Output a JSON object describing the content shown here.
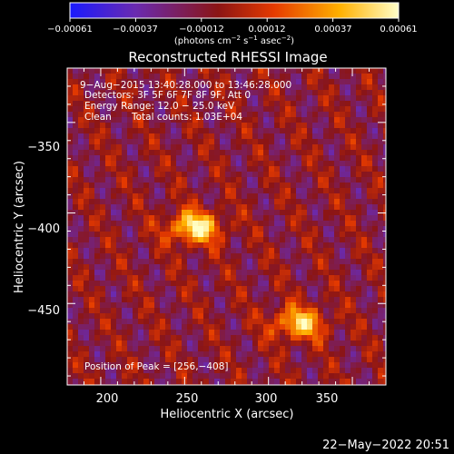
{
  "chart_data": {
    "type": "heatmap",
    "title": "Reconstructed RHESSI Image",
    "xlabel": "Heliocentric X (arcsec)",
    "ylabel": "Heliocentric Y (arcsec)",
    "xlim": [
      180,
      370
    ],
    "ylim": [
      -495,
      -320
    ],
    "x_ticks": [
      200,
      250,
      300,
      350
    ],
    "y_ticks": [
      -450,
      -400,
      -350
    ],
    "x_tick_labels": [
      "200",
      "250",
      "300",
      "350"
    ],
    "y_tick_labels": [
      "−450",
      "−400",
      "−350"
    ],
    "colorbar": {
      "min": -0.00061,
      "max": 0.00061,
      "tick_labels": [
        "−0.00061",
        "−0.00037",
        "−0.00012",
        "0.00012",
        "0.00037",
        "0.00061"
      ],
      "units": "(photons cm",
      "units_exp1": "−2",
      "units_mid": " s",
      "units_exp2": "−1",
      "units_end": " asec",
      "units_exp3": "−2",
      "units_close": ")",
      "colors": [
        "#1a1aff",
        "#6a2ab0",
        "#8b1515",
        "#e53a00",
        "#ffb000",
        "#ffffc8"
      ]
    },
    "annotations": {
      "time": "9−Aug−2015 13:40:28.000 to 13:46:28.000",
      "detectors": "Detectors: 3F 5F 6F 7F 8F 9F, Att 0",
      "energy": "Energy Range: 12.0 − 25.0 keV",
      "clean_label": "Clean",
      "total_counts": "Total counts: 1.03E+04",
      "peak": "Position of Peak = [256,−408]"
    },
    "peaks": [
      {
        "x": 256,
        "y": -408,
        "amp": 1.0
      },
      {
        "x": 318,
        "y": -461,
        "amp": 0.85
      }
    ],
    "footer_date": "22−May−2022 20:51"
  }
}
